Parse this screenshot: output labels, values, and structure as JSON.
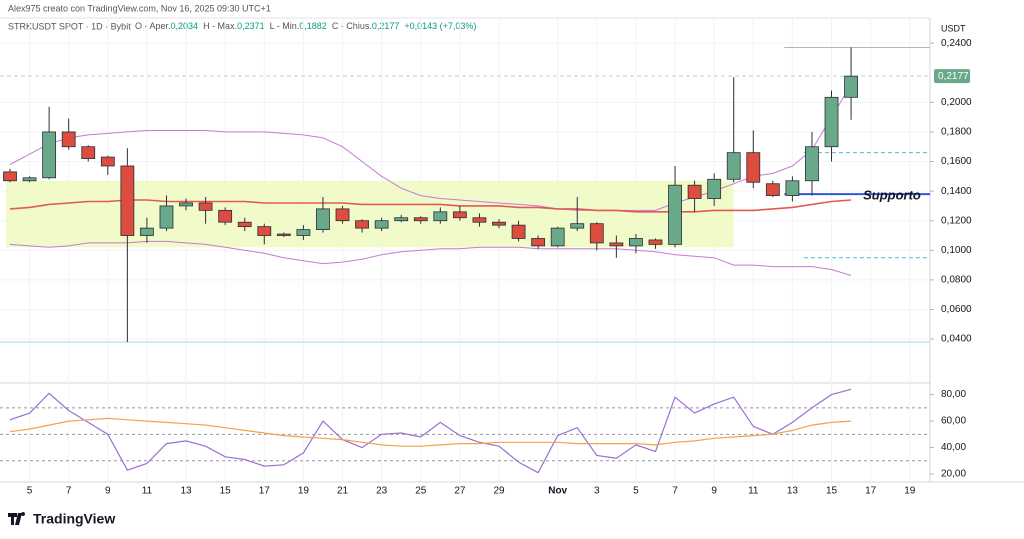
{
  "credit": "Alex975 creato con TradingView.com, Nov 16, 2025 09:30 UTC+1",
  "logo": "TradingView",
  "chart_data": [
    {
      "type": "candlestick",
      "symbol": "STRKUSDT SPOT · 1D · Bybit",
      "ohlc_legend": [
        {
          "label": "O - Aper.",
          "value": "0,2034"
        },
        {
          "label": "H - Max.",
          "value": "0,2371"
        },
        {
          "label": "L - Min.",
          "value": "0,1882"
        },
        {
          "label": "C - Chius.",
          "value": "0,2177"
        }
      ],
      "change": "+0,0143 (+7,03%)",
      "y_axis_label": "USDT",
      "categories": [
        null,
        "5",
        null,
        "7",
        null,
        "9",
        null,
        "11",
        null,
        "13",
        null,
        "15",
        null,
        "17",
        null,
        "19",
        null,
        "21",
        null,
        "23",
        null,
        "25",
        null,
        "27",
        null,
        "29",
        null,
        null,
        "Nov",
        null,
        "3",
        null,
        "5",
        null,
        "7",
        null,
        "9",
        null,
        "11",
        null,
        "13",
        null,
        "15",
        null,
        "17",
        null,
        "19"
      ],
      "open": [
        0.153,
        0.147,
        0.149,
        0.18,
        0.17,
        0.163,
        0.157,
        0.11,
        0.115,
        0.13,
        0.132,
        0.127,
        0.119,
        0.116,
        0.111,
        0.11,
        0.114,
        0.128,
        0.12,
        0.115,
        0.12,
        0.122,
        0.12,
        0.126,
        0.122,
        0.119,
        0.117,
        0.108,
        0.103,
        0.115,
        0.118,
        0.105,
        0.103,
        0.107,
        0.104,
        0.144,
        0.135,
        0.148,
        0.166,
        0.145,
        0.137,
        0.147,
        0.17,
        0.2034,
        null,
        null,
        null
      ],
      "high": [
        0.155,
        0.15,
        0.197,
        0.189,
        0.171,
        0.164,
        0.169,
        0.122,
        0.137,
        0.135,
        0.136,
        0.129,
        0.122,
        0.118,
        0.112,
        0.117,
        0.136,
        0.13,
        0.121,
        0.122,
        0.124,
        0.123,
        0.129,
        0.13,
        0.125,
        0.121,
        0.12,
        0.11,
        0.116,
        0.136,
        0.119,
        0.11,
        0.111,
        0.108,
        0.157,
        0.147,
        0.152,
        0.217,
        0.181,
        0.147,
        0.15,
        0.18,
        0.208,
        0.2371,
        null,
        null,
        null
      ],
      "low": [
        0.146,
        0.146,
        0.148,
        0.168,
        0.16,
        0.151,
        0.038,
        0.105,
        0.113,
        0.127,
        0.118,
        0.117,
        0.113,
        0.104,
        0.109,
        0.107,
        0.112,
        0.118,
        0.112,
        0.113,
        0.119,
        0.118,
        0.118,
        0.12,
        0.116,
        0.115,
        0.106,
        0.101,
        0.102,
        0.113,
        0.1,
        0.095,
        0.098,
        0.101,
        0.102,
        0.126,
        0.13,
        0.146,
        0.142,
        0.136,
        0.133,
        0.137,
        0.16,
        0.1882,
        null,
        null,
        null
      ],
      "close": [
        0.147,
        0.149,
        0.18,
        0.17,
        0.162,
        0.157,
        0.11,
        0.115,
        0.13,
        0.132,
        0.127,
        0.119,
        0.116,
        0.11,
        0.11,
        0.114,
        0.128,
        0.12,
        0.115,
        0.12,
        0.122,
        0.12,
        0.126,
        0.122,
        0.119,
        0.117,
        0.108,
        0.103,
        0.115,
        0.118,
        0.105,
        0.103,
        0.108,
        0.104,
        0.144,
        0.135,
        0.148,
        0.166,
        0.146,
        0.137,
        0.147,
        0.17,
        0.2034,
        0.2177,
        null,
        null,
        null
      ],
      "up_color": "#6aa88a",
      "down_color": "#dc4c3f",
      "lines": [
        {
          "color": "#c57bd1",
          "values": [
            0.158,
            0.165,
            0.172,
            0.176,
            0.178,
            0.179,
            0.18,
            0.181,
            0.181,
            0.181,
            0.181,
            0.18,
            0.18,
            0.18,
            0.179,
            0.178,
            0.176,
            0.17,
            0.16,
            0.15,
            0.142,
            0.137,
            0.135,
            0.134,
            0.133,
            0.132,
            0.131,
            0.13,
            0.128,
            0.127,
            0.127,
            0.127,
            0.127,
            0.127,
            0.132,
            0.136,
            0.14,
            0.145,
            0.15,
            0.152,
            0.157,
            0.168,
            0.19,
            0.212,
            null,
            null,
            null
          ]
        },
        {
          "color": "#c57bd1",
          "values": [
            0.104,
            0.103,
            0.102,
            0.103,
            0.105,
            0.105,
            0.105,
            0.106,
            0.106,
            0.105,
            0.104,
            0.102,
            0.1,
            0.098,
            0.095,
            0.093,
            0.091,
            0.092,
            0.094,
            0.097,
            0.099,
            0.1,
            0.101,
            0.101,
            0.102,
            0.102,
            0.102,
            0.101,
            0.101,
            0.101,
            0.101,
            0.101,
            0.1,
            0.099,
            0.097,
            0.096,
            0.095,
            0.09,
            0.09,
            0.089,
            0.089,
            0.089,
            0.087,
            0.083,
            null,
            null,
            null
          ]
        },
        {
          "color": "#e25a55",
          "values": [
            0.128,
            0.129,
            0.131,
            0.132,
            0.133,
            0.133,
            0.134,
            0.134,
            0.133,
            0.133,
            0.133,
            0.133,
            0.133,
            0.132,
            0.132,
            0.132,
            0.132,
            0.132,
            0.131,
            0.131,
            0.131,
            0.131,
            0.131,
            0.13,
            0.13,
            0.13,
            0.129,
            0.129,
            0.128,
            0.128,
            0.127,
            0.127,
            0.126,
            0.126,
            0.126,
            0.126,
            0.127,
            0.127,
            0.127,
            0.128,
            0.129,
            0.131,
            0.133,
            0.134,
            null,
            null,
            null
          ]
        }
      ],
      "zone": {
        "from": 0,
        "to": 37,
        "low": 0.102,
        "high": 0.147,
        "color": "#eef9bf"
      },
      "hlines": [
        {
          "value": 0.2371,
          "from": 40,
          "color": "#b2b5be",
          "dash": false
        },
        {
          "value": 0.2177,
          "from": 0,
          "color": "#c8cad0",
          "dash": true
        },
        {
          "value": 0.038,
          "from": 0,
          "color": "#a6d8ec",
          "dash": false
        },
        {
          "value": 0.138,
          "from": 40,
          "color": "#2f56d8",
          "dash": false,
          "width": 2
        },
        {
          "value": 0.166,
          "from": 41,
          "color": "#4fb9cf",
          "dash": true
        },
        {
          "value": 0.095,
          "from": 41,
          "color": "#4fb9cf",
          "dash": true
        }
      ],
      "annotation": {
        "text": "Supporto",
        "value": 0.1365,
        "at": 43,
        "color": "#2f56d8"
      },
      "last_price": {
        "value": 0.2177,
        "label": "0,2177",
        "color": "#6aa88a"
      },
      "ylim": [
        0.011,
        0.257
      ],
      "yticks": [
        {
          "value": 0.04,
          "label": "0,0400"
        },
        {
          "value": 0.06,
          "label": "0,0600"
        },
        {
          "value": 0.08,
          "label": "0,0800"
        },
        {
          "value": 0.1,
          "label": "0,1000"
        },
        {
          "value": 0.12,
          "label": "0,1200"
        },
        {
          "value": 0.14,
          "label": "0,1400"
        },
        {
          "value": 0.16,
          "label": "0,1600"
        },
        {
          "value": 0.18,
          "label": "0,1800"
        },
        {
          "value": 0.2,
          "label": "0,2000"
        },
        {
          "value": 0.24,
          "label": "0,2400"
        }
      ],
      "grid": true
    },
    {
      "type": "line",
      "series": [
        {
          "color": "#9b6fd1",
          "values": [
            61,
            66,
            81,
            68,
            59,
            50,
            23,
            28,
            43,
            45,
            41,
            33,
            31,
            26,
            27,
            36,
            60,
            46,
            40,
            50,
            51,
            48,
            59,
            49,
            44,
            41,
            29,
            21,
            49,
            55,
            34,
            32,
            42,
            37,
            78,
            66,
            73,
            78,
            56,
            50,
            59,
            70,
            80,
            84,
            null,
            null,
            null
          ]
        },
        {
          "color": "#f4a24a",
          "values": [
            52,
            54,
            57,
            60,
            61,
            62,
            61,
            60,
            59,
            58,
            57,
            55,
            53,
            51,
            49,
            48,
            47,
            46,
            44,
            42,
            41,
            41,
            42,
            43,
            43,
            44,
            44,
            44,
            44,
            43,
            43,
            43,
            43,
            42,
            44,
            45,
            47,
            48,
            49,
            50,
            53,
            57,
            59,
            60,
            null,
            null,
            null
          ]
        }
      ],
      "levels": [
        70,
        50,
        30
      ],
      "ylim": [
        14,
        88
      ],
      "yticks": [
        {
          "value": 20,
          "label": "20,00"
        },
        {
          "value": 40,
          "label": "40,00"
        },
        {
          "value": 60,
          "label": "60,00"
        },
        {
          "value": 80,
          "label": "80,00"
        }
      ]
    }
  ]
}
